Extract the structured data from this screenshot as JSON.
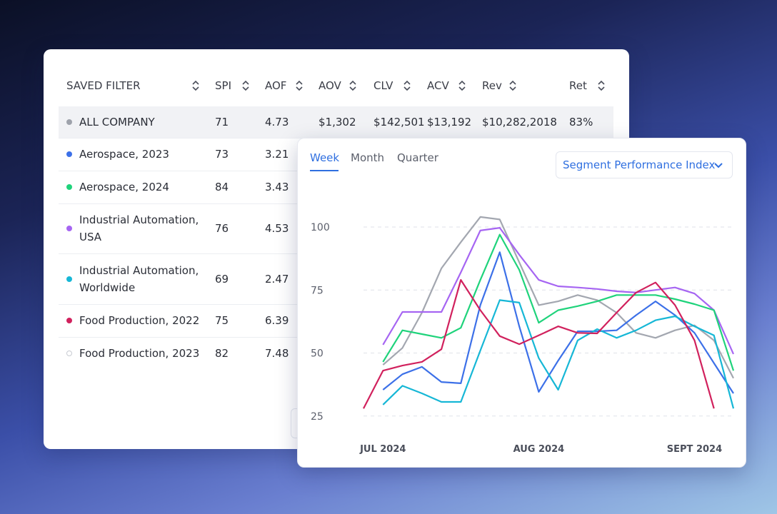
{
  "table": {
    "headers": [
      "SAVED FILTER",
      "SPI",
      "AOF",
      "AOV",
      "CLV",
      "ACV",
      "Rev",
      "Ret"
    ],
    "rows": [
      [
        "ALL COMPANY",
        "71",
        "4.73",
        "$1,302",
        "$142,501",
        "$13,192",
        "$10,282,2018",
        "83%"
      ],
      [
        "Aerospace, 2023",
        "73",
        "3.21"
      ],
      [
        "Aerospace, 2024",
        "84",
        "3.43"
      ],
      [
        "Industrial Automation, USA",
        "76",
        "4.53"
      ],
      [
        "Industrial Automation, Worldwide",
        "69",
        "2.47"
      ],
      [
        "Food Production, 2022",
        "75",
        "6.39"
      ],
      [
        "Food Production, 2023",
        "82",
        "7.48"
      ]
    ]
  },
  "tabs": [
    "Week",
    "Month",
    "Quarter"
  ],
  "dropdown": "Segment Performance Index",
  "chart_data": {
    "type": "line",
    "categories": [
      null,
      "JUL 2024",
      null,
      null,
      null,
      null,
      null,
      null,
      null,
      "AUG 2024",
      null,
      null,
      null,
      null,
      null,
      null,
      null,
      "SEPT 2024",
      null,
      null
    ],
    "ylim": [
      20,
      110
    ],
    "yticks": [
      25,
      50,
      75,
      100
    ],
    "grid": true,
    "series": [
      {
        "color": "#a3a7b0",
        "values": [
          null,
          45.3,
          52,
          66,
          83.6,
          94,
          104,
          103,
          86,
          69,
          70.5,
          73,
          71,
          66,
          58,
          56,
          59,
          61,
          55,
          40
        ]
      },
      {
        "color": "#a665f2",
        "values": [
          null,
          53.3,
          66.3,
          66.3,
          66.3,
          82,
          98.6,
          99.7,
          89,
          79,
          76.5,
          76,
          75.4,
          74.5,
          74,
          75,
          76,
          73.6,
          67,
          49.6
        ]
      },
      {
        "color": "#1fd37b",
        "values": [
          null,
          46.5,
          59,
          57.5,
          56,
          60,
          79,
          97,
          83,
          62,
          67,
          68.6,
          70.5,
          73,
          73,
          73,
          71.4,
          69.4,
          67,
          43
        ]
      },
      {
        "color": "#3c70e8",
        "values": [
          null,
          35.4,
          41.6,
          44.5,
          38.5,
          38,
          69,
          90,
          60.6,
          34.6,
          47,
          58.6,
          58.6,
          59,
          65,
          70.5,
          65,
          58,
          46,
          34
        ]
      },
      {
        "color": "#16b7d6",
        "values": [
          null,
          29.5,
          37,
          34,
          30.6,
          30.6,
          51,
          71,
          70,
          48,
          35.4,
          55,
          59.5,
          56,
          59,
          63,
          64.6,
          60.6,
          57,
          28
        ]
      },
      {
        "color": "#d1215d",
        "values": [
          28,
          43,
          45,
          46.5,
          51.5,
          79,
          67,
          56.7,
          53.5,
          57,
          60.6,
          58,
          57.8,
          66,
          74,
          78,
          69,
          55,
          28,
          null
        ]
      }
    ]
  }
}
